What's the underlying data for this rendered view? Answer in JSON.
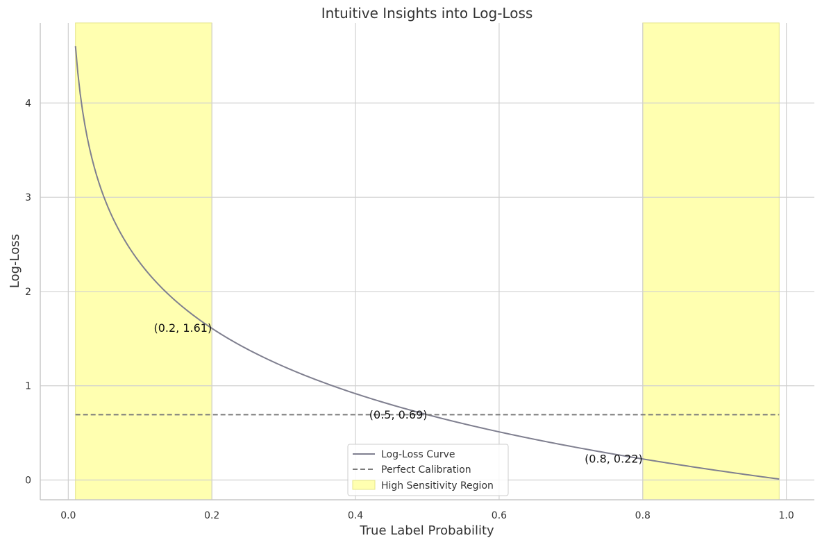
{
  "chart_data": {
    "type": "line",
    "title": "Intuitive Insights into Log-Loss",
    "xlabel": "True Label Probability",
    "ylabel": "Log-Loss",
    "xlim": [
      -0.039,
      1.039
    ],
    "ylim": [
      -0.21,
      4.85
    ],
    "xticks": [
      0.0,
      0.2,
      0.4,
      0.6,
      0.8,
      1.0
    ],
    "xtick_labels": [
      "0.0",
      "0.2",
      "0.4",
      "0.6",
      "0.8",
      "1.0"
    ],
    "yticks": [
      0,
      1,
      2,
      3,
      4
    ],
    "ytick_labels": [
      "0",
      "1",
      "2",
      "3",
      "4"
    ],
    "grid": true,
    "legend_position": "bottom-center",
    "colors": {
      "curve": "#7f7f8f",
      "dashed": "#7a7a7a",
      "region": "#ffffb0",
      "region_edge": "#e6e68a",
      "grid": "#d0d0d0",
      "axis": "#c8c8c8"
    },
    "series": [
      {
        "name": "Log-Loss Curve",
        "style": "solid",
        "x": [
          0.01,
          0.02,
          0.03,
          0.05,
          0.07,
          0.1,
          0.15,
          0.2,
          0.3,
          0.4,
          0.5,
          0.6,
          0.7,
          0.8,
          0.9,
          0.99
        ],
        "y": [
          4.605,
          3.912,
          3.507,
          2.996,
          2.659,
          2.303,
          1.897,
          1.609,
          1.204,
          0.916,
          0.693,
          0.511,
          0.357,
          0.223,
          0.105,
          0.01
        ]
      },
      {
        "name": "Perfect Calibration",
        "style": "dashed",
        "x": [
          0.01,
          0.99
        ],
        "y": [
          0.693,
          0.693
        ]
      }
    ],
    "regions": [
      {
        "name": "High Sensitivity Region",
        "x_start": 0.01,
        "x_end": 0.2
      },
      {
        "name": "High Sensitivity Region",
        "x_start": 0.8,
        "x_end": 0.99
      }
    ],
    "annotations": [
      {
        "text": "(0.2, 1.61)",
        "x": 0.2,
        "y": 1.61
      },
      {
        "text": "(0.5, 0.69)",
        "x": 0.5,
        "y": 0.69
      },
      {
        "text": "(0.8, 0.22)",
        "x": 0.8,
        "y": 0.22
      }
    ],
    "legend": [
      {
        "label": "Log-Loss Curve",
        "kind": "solid-line"
      },
      {
        "label": "Perfect Calibration",
        "kind": "dashed-line"
      },
      {
        "label": "High Sensitivity Region",
        "kind": "patch"
      }
    ]
  }
}
